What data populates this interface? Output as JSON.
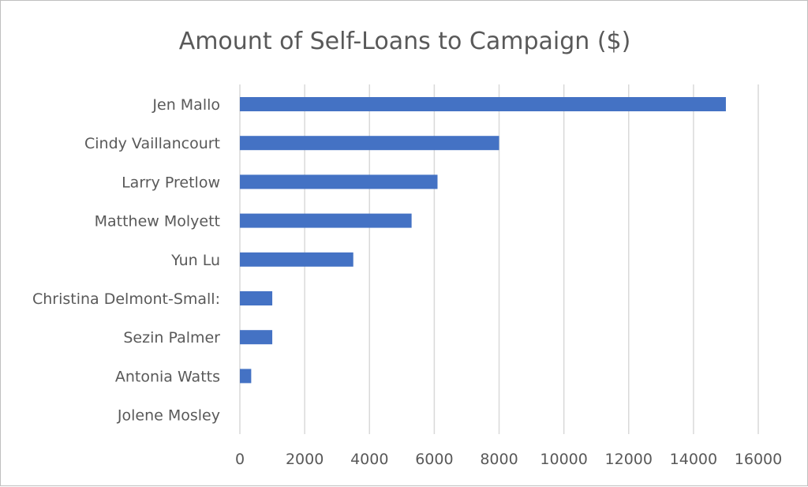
{
  "chart_data": {
    "type": "bar",
    "orientation": "horizontal",
    "title": "Amount of Self-Loans to Campaign ($)",
    "xlabel": "",
    "ylabel": "",
    "categories": [
      "Jen Mallo",
      "Cindy Vaillancourt",
      "Larry Pretlow",
      "Matthew Molyett",
      "Yun Lu",
      "Christina Delmont-Small:",
      "Sezin Palmer",
      "Antonia Watts",
      "Jolene Mosley"
    ],
    "values": [
      15000,
      8000,
      6100,
      5300,
      3500,
      1000,
      1000,
      350,
      0
    ],
    "xlim": [
      0,
      16000
    ],
    "xticks": [
      0,
      2000,
      4000,
      6000,
      8000,
      10000,
      12000,
      14000,
      16000
    ],
    "grid": "vertical",
    "legend": "none",
    "bar_color": "#4472c4"
  }
}
